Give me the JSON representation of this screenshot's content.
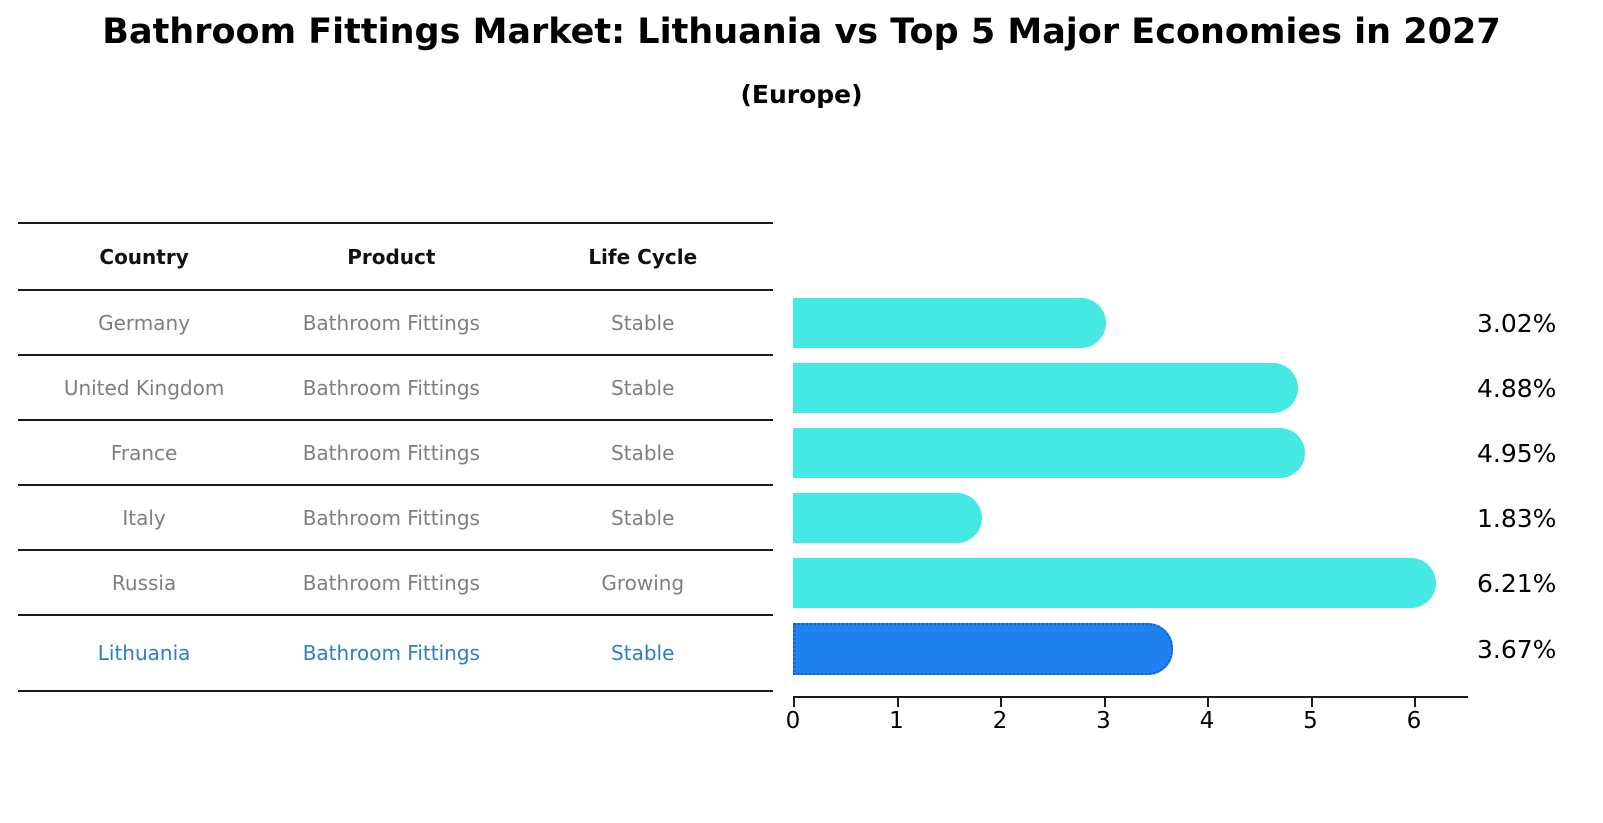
{
  "title": "Bathroom Fittings Market: Lithuania vs Top 5 Major Economies in 2027",
  "subtitle": "(Europe)",
  "table": {
    "headers": [
      "Country",
      "Product",
      "Life Cycle"
    ],
    "rows": [
      {
        "country": "Germany",
        "product": "Bathroom Fittings",
        "life_cycle": "Stable",
        "highlight": false
      },
      {
        "country": "United Kingdom",
        "product": "Bathroom Fittings",
        "life_cycle": "Stable",
        "highlight": false
      },
      {
        "country": "France",
        "product": "Bathroom Fittings",
        "life_cycle": "Stable",
        "highlight": false
      },
      {
        "country": "Italy",
        "product": "Bathroom Fittings",
        "life_cycle": "Stable",
        "highlight": false
      },
      {
        "country": "Russia",
        "product": "Bathroom Fittings",
        "life_cycle": "Growing",
        "highlight": false
      },
      {
        "country": "Lithuania",
        "product": "Bathroom Fittings",
        "life_cycle": "Stable",
        "highlight": true
      }
    ]
  },
  "chart_data": {
    "type": "bar",
    "orientation": "horizontal",
    "title": "Bathroom Fittings Market: Lithuania vs Top 5 Major Economies in 2027",
    "subtitle": "(Europe)",
    "categories": [
      "Germany",
      "United Kingdom",
      "France",
      "Italy",
      "Russia",
      "Lithuania"
    ],
    "values": [
      3.02,
      4.88,
      4.95,
      1.83,
      6.21,
      3.67
    ],
    "value_labels": [
      "3.02%",
      "4.88%",
      "4.95%",
      "1.83%",
      "6.21%",
      "3.67%"
    ],
    "x_ticks": [
      0,
      1,
      2,
      3,
      4,
      5,
      6
    ],
    "xlim": [
      0,
      6.52
    ],
    "grid": false,
    "legend": false,
    "bar_color": "#45e8e2",
    "highlight_color": "#1f80f0",
    "highlight_index": 5
  },
  "colors": {
    "bar_cyan": "#45e8e2",
    "bar_blue": "#1f80f0",
    "highlight_text_blue": "#2e7dc7",
    "row_text_gray": "#7f7f7f",
    "header_text": "#111111",
    "line": "#1a1a1a"
  }
}
